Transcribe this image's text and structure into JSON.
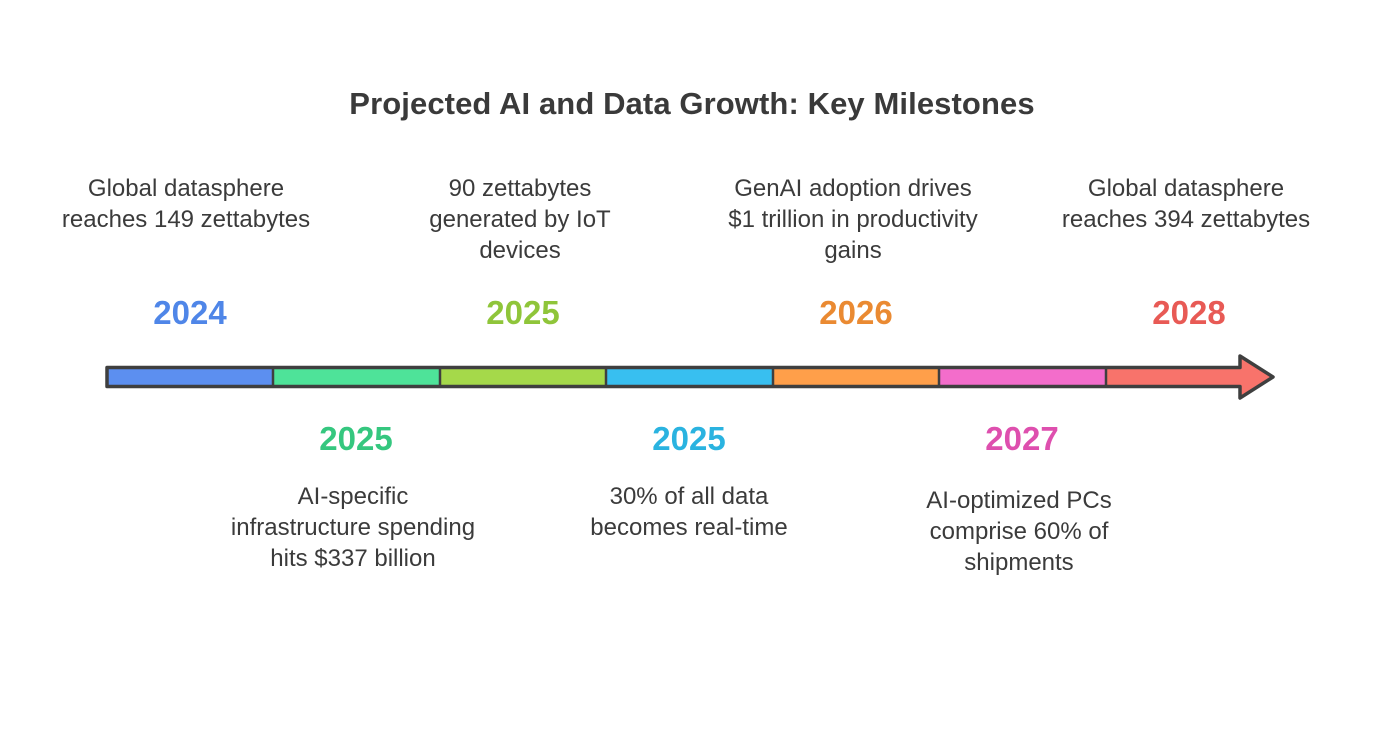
{
  "title": "Projected AI and Data Growth: Key Milestones",
  "milestones": [
    {
      "year": "2024",
      "text": "Global datasphere reaches 149 zettabytes",
      "color": "#4f86e8",
      "position": "top"
    },
    {
      "year": "2025",
      "text": "AI-specific infrastructure spending hits $337 billion",
      "color": "#35c77f",
      "position": "bottom"
    },
    {
      "year": "2025",
      "text": "90 zettabytes generated by IoT devices",
      "color": "#8fc53a",
      "position": "top"
    },
    {
      "year": "2025",
      "text": "30% of all data becomes real-time",
      "color": "#2ab3e0",
      "position": "bottom"
    },
    {
      "year": "2026",
      "text": "GenAI adoption drives $1 trillion in productivity gains",
      "color": "#ea8a32",
      "position": "top"
    },
    {
      "year": "2027",
      "text": "AI-optimized PCs comprise 60% of shipments",
      "color": "#de4fae",
      "position": "bottom"
    },
    {
      "year": "2028",
      "text": "Global datasphere reaches 394 zettabytes",
      "color": "#e85a55",
      "position": "top"
    }
  ],
  "segment_colors": [
    "#5c8ff0",
    "#4ee399",
    "#a5d94a",
    "#38bff0",
    "#ff9f4a",
    "#f36dcb",
    "#f8736b"
  ]
}
